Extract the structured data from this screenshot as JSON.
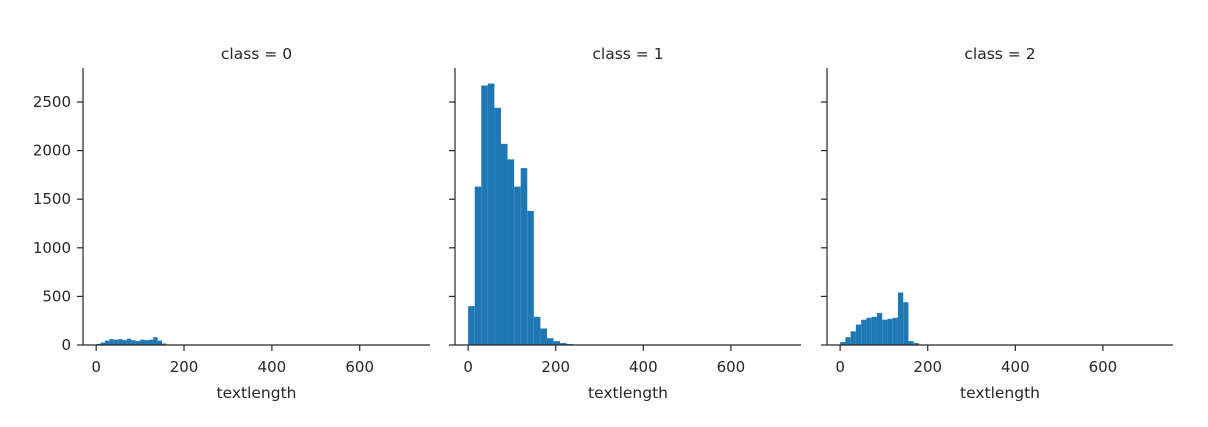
{
  "chart_data": [
    {
      "type": "bar",
      "title": "class = 0",
      "xlabel": "textlength",
      "ylabel": "",
      "xlim": [
        -30,
        760
      ],
      "ylim": [
        0,
        2850
      ],
      "xticks": [
        0,
        200,
        400,
        600
      ],
      "yticks": [
        0,
        500,
        1000,
        1500,
        2000,
        2500
      ],
      "bin_width": 10,
      "bin_starts": [
        0,
        10,
        20,
        30,
        40,
        50,
        60,
        70,
        80,
        90,
        100,
        110,
        120,
        130,
        140,
        150
      ],
      "values": [
        10,
        25,
        45,
        60,
        55,
        60,
        50,
        65,
        50,
        40,
        55,
        50,
        55,
        80,
        45,
        15
      ],
      "color": "#1f77b4"
    },
    {
      "type": "bar",
      "title": "class = 1",
      "xlabel": "textlength",
      "ylabel": "",
      "xlim": [
        -30,
        760
      ],
      "ylim": [
        0,
        2850
      ],
      "xticks": [
        0,
        200,
        400,
        600
      ],
      "yticks": [
        0,
        500,
        1000,
        1500,
        2000,
        2500
      ],
      "bin_width": 15,
      "bin_starts": [
        0,
        15,
        30,
        45,
        60,
        75,
        90,
        105,
        120,
        135,
        150,
        165,
        180,
        195,
        210,
        225
      ],
      "values": [
        400,
        1630,
        2670,
        2690,
        2440,
        2070,
        1910,
        1630,
        1820,
        1380,
        290,
        170,
        70,
        40,
        20,
        10
      ],
      "color": "#1f77b4"
    },
    {
      "type": "bar",
      "title": "class = 2",
      "xlabel": "textlength",
      "ylabel": "",
      "xlim": [
        -30,
        760
      ],
      "ylim": [
        0,
        2850
      ],
      "xticks": [
        0,
        200,
        400,
        600
      ],
      "yticks": [
        0,
        500,
        1000,
        1500,
        2000,
        2500
      ],
      "bin_width": 12,
      "bin_starts": [
        0,
        12,
        24,
        36,
        48,
        60,
        72,
        84,
        96,
        108,
        120,
        132,
        144,
        156,
        168
      ],
      "values": [
        30,
        80,
        140,
        210,
        260,
        280,
        290,
        330,
        260,
        270,
        280,
        540,
        440,
        40,
        20
      ],
      "color": "#1f77b4"
    }
  ]
}
